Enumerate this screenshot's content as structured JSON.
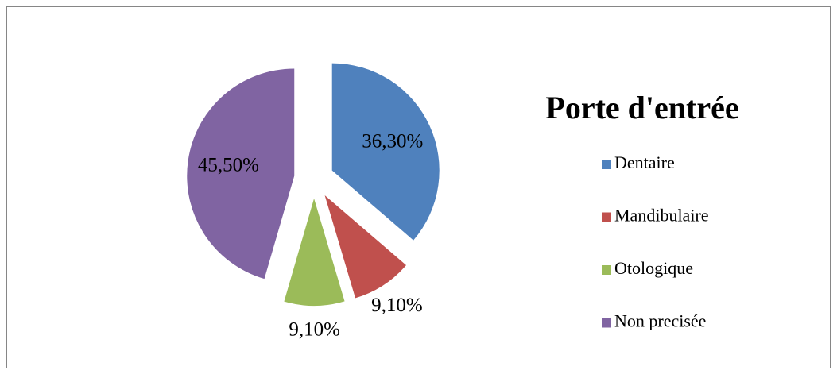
{
  "chart_data": {
    "type": "pie",
    "title": "Porte d'entrée",
    "categories": [
      "Dentaire",
      "Mandibulaire",
      "Otologique",
      "Non precisée"
    ],
    "values": [
      36.3,
      9.1,
      9.1,
      45.5
    ],
    "value_labels": [
      "36,30%",
      "9,10%",
      "9,10%",
      "45,50%"
    ],
    "colors": [
      "#4f81bd",
      "#c0504d",
      "#9bbb59",
      "#8064a2"
    ],
    "legend": "right"
  }
}
